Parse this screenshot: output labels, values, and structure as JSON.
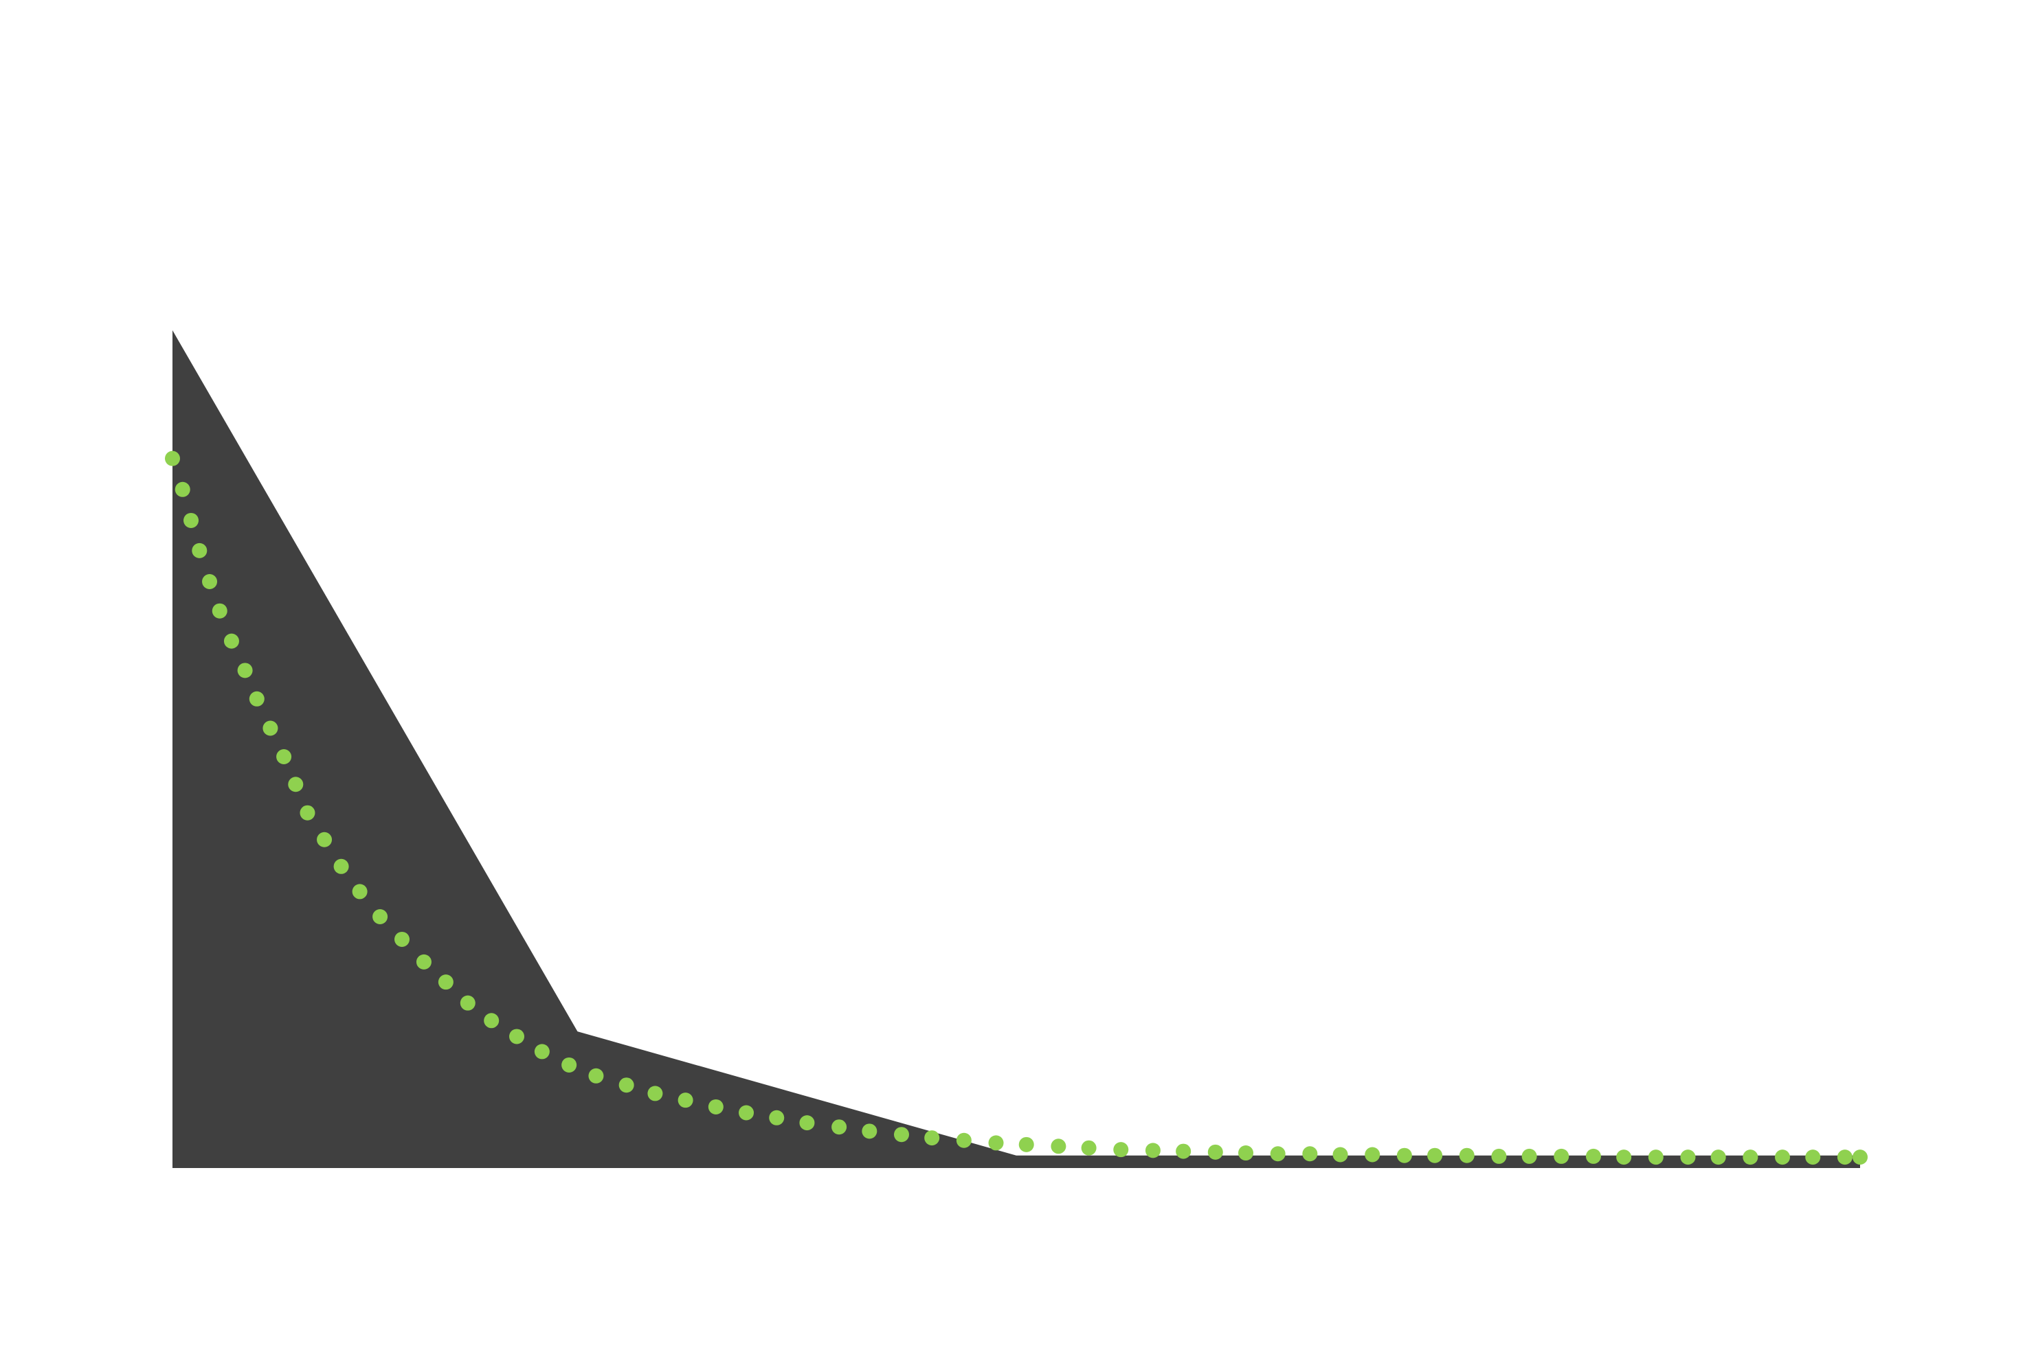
{
  "chart_data": {
    "type": "area",
    "title": "",
    "xlabel": "",
    "ylabel": "",
    "xlim": [
      0,
      1
    ],
    "ylim": [
      0,
      1
    ],
    "grid": false,
    "legend": "none",
    "series": [
      {
        "kind": "area",
        "color": "#404040",
        "x": [
          0,
          0.24,
          0.5,
          1.0
        ],
        "y": [
          1.0,
          0.163,
          0.015,
          0.015
        ]
      },
      {
        "kind": "dotted-line",
        "color": "#8fd14f",
        "x": [
          0.0,
          0.006,
          0.011,
          0.016,
          0.022,
          0.028,
          0.035,
          0.043,
          0.05,
          0.058,
          0.066,
          0.073,
          0.08,
          0.09,
          0.1,
          0.111,
          0.123,
          0.136,
          0.149,
          0.162,
          0.175,
          0.189,
          0.204,
          0.219,
          0.235,
          0.251,
          0.269,
          0.286,
          0.304,
          0.322,
          0.34,
          0.358,
          0.376,
          0.395,
          0.413,
          0.432,
          0.45,
          0.469,
          0.488,
          0.506,
          0.525,
          0.543,
          0.562,
          0.581,
          0.599,
          0.618,
          0.636,
          0.655,
          0.674,
          0.692,
          0.711,
          0.73,
          0.748,
          0.767,
          0.786,
          0.804,
          0.823,
          0.842,
          0.86,
          0.879,
          0.898,
          0.916,
          0.935,
          0.954,
          0.972,
          0.991,
          1.0
        ],
        "y": [
          0.847,
          0.81,
          0.773,
          0.737,
          0.7,
          0.665,
          0.629,
          0.594,
          0.56,
          0.525,
          0.491,
          0.458,
          0.424,
          0.392,
          0.36,
          0.33,
          0.3,
          0.273,
          0.246,
          0.222,
          0.197,
          0.176,
          0.157,
          0.139,
          0.123,
          0.11,
          0.099,
          0.089,
          0.081,
          0.073,
          0.066,
          0.06,
          0.054,
          0.049,
          0.044,
          0.04,
          0.036,
          0.033,
          0.03,
          0.028,
          0.026,
          0.024,
          0.022,
          0.021,
          0.02,
          0.019,
          0.018,
          0.017,
          0.017,
          0.016,
          0.016,
          0.015,
          0.015,
          0.015,
          0.014,
          0.014,
          0.014,
          0.014,
          0.013,
          0.013,
          0.013,
          0.013,
          0.013,
          0.013,
          0.013,
          0.013,
          0.013
        ]
      }
    ]
  }
}
